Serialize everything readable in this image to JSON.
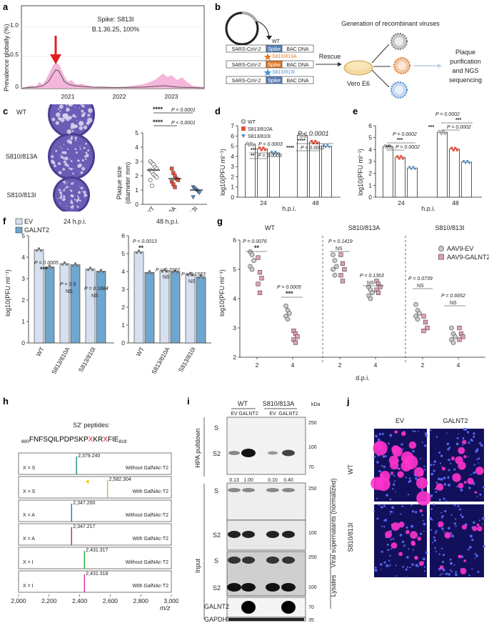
{
  "panels": {
    "a": "a",
    "b": "b",
    "c": "c",
    "d": "d",
    "e": "e",
    "f": "f",
    "g": "g",
    "h": "h",
    "i": "i",
    "j": "j"
  },
  "panel_a": {
    "ylabel": "Prevalence globally (%)",
    "yticks": [
      "0",
      "0.5",
      "1.0"
    ],
    "xticks": [
      "2021",
      "2022",
      "2023"
    ],
    "annot1": "Spike: S813I",
    "annot2": "B.1.36.25, 100%",
    "colors": {
      "band": "#f2a9d3",
      "line": "#555555",
      "arrow": "#e02020"
    }
  },
  "panel_b": {
    "rows": [
      {
        "c1": "SARS-CoV-2",
        "c2": "Spike",
        "c3": "BAC DNA",
        "tag": "WT",
        "tagcolor": "#333333",
        "fill": "#5b82b8"
      },
      {
        "c1": "SARS-CoV-2",
        "c2": "Spike",
        "c3": "BAC DNA",
        "tag": "S810/813A",
        "tagcolor": "#e07a2a",
        "fill": "#e07a2a"
      },
      {
        "c1": "SARS-CoV-2",
        "c2": "Spike",
        "c3": "BAC DNA",
        "tag": "S810/813I",
        "tagcolor": "#4a90d0",
        "fill": "#5b82b8"
      }
    ],
    "title": "Generation of recombinant viruses",
    "rescue": "Rescue",
    "cell": "Vero E6",
    "out1": "Plaque",
    "out2": "purification",
    "out3": "and NGS",
    "out4": "sequencing"
  },
  "panel_c": {
    "labels": [
      "WT",
      "S810/813A",
      "S810/813I"
    ],
    "ylabel1": "Plaque size",
    "ylabel2": "(diameter mm)",
    "yticks": [
      "0",
      "1",
      "2",
      "3",
      "4",
      "5"
    ],
    "p1": "****",
    "p1v": "P < 0.0001",
    "p2": "****",
    "p2v": "P < 0.0001",
    "chart_data": {
      "type": "scatter",
      "categories": [
        "WT",
        "S810/813A",
        "S810/813I"
      ],
      "means": [
        2.4,
        1.8,
        1.0
      ],
      "points": [
        [
          3.0,
          2.9,
          2.8,
          2.6,
          2.5,
          2.4,
          2.3,
          2.1,
          2.0,
          1.9,
          1.7,
          1.3
        ],
        [
          2.5,
          2.2,
          2.0,
          1.8,
          1.7,
          1.6,
          1.4,
          1.2
        ],
        [
          1.2,
          1.1,
          1.0,
          0.9,
          0.8,
          0.5
        ]
      ],
      "ylim": [
        0,
        5
      ]
    }
  },
  "panel_d": {
    "ylabel": "log10(PFU ml⁻¹)",
    "xlabel": "h.p.i.",
    "yticks": [
      "0",
      "1",
      "2",
      "3",
      "4",
      "5",
      "6",
      "7"
    ],
    "xticks": [
      "24",
      "48"
    ],
    "legend": [
      "WT",
      "S813/810A",
      "S813/810I"
    ],
    "stats": [
      "P = 0.0003",
      "***",
      "**",
      "P = 0.0003",
      "P < 0.0001",
      "****",
      "****",
      "P < 0.0001"
    ],
    "chart_data": {
      "type": "bar",
      "categories": [
        "24",
        "48"
      ],
      "series": [
        {
          "name": "WT",
          "values": [
            5.2,
            6.05
          ]
        },
        {
          "name": "S813/810A",
          "values": [
            4.75,
            5.4
          ]
        },
        {
          "name": "S813/810I",
          "values": [
            4.35,
            5.0
          ]
        }
      ],
      "ylim": [
        0,
        7
      ]
    }
  },
  "panel_e": {
    "ylabel": "log10(PFU ml⁻¹)",
    "xlabel": "h.p.i.",
    "yticks": [
      "0",
      "1",
      "2",
      "3",
      "4",
      "5",
      "6"
    ],
    "xticks": [
      "24",
      "48"
    ],
    "stats": [
      "P = 0.0002",
      "***",
      "***",
      "P = 0.0002",
      "P = 0.0002",
      "***",
      "***",
      "P = 0.0002"
    ],
    "chart_data": {
      "type": "bar",
      "categories": [
        "24",
        "48"
      ],
      "series": [
        {
          "values": [
            4.25,
            5.45
          ]
        },
        {
          "values": [
            3.35,
            4.05
          ]
        },
        {
          "values": [
            2.45,
            2.95
          ]
        }
      ],
      "ylim": [
        0,
        6
      ]
    }
  },
  "panel_f": {
    "ylabel": "log10(PFU ml⁻¹)",
    "legend": [
      "EV",
      "GALNT2"
    ],
    "titles": [
      "24 h.p.i.",
      "48 h.p.i."
    ],
    "yticks": [
      "0",
      "1",
      "2",
      "3",
      "4",
      "5"
    ],
    "yticks2": [
      "0",
      "1",
      "2",
      "3",
      "4",
      "5",
      "6"
    ],
    "xticks": [
      "WT",
      "S813/810A",
      "S813/810I"
    ],
    "stats24": [
      "P = 0.0005",
      "***",
      "P > 0.9",
      "NS",
      "P = 0.1884",
      "NS"
    ],
    "stats48": [
      "P < 0.0013",
      "**",
      "P = 0.2022",
      "NS",
      "P = 0.1583",
      "NS"
    ],
    "chart_data": [
      {
        "type": "bar",
        "title": "24 h.p.i.",
        "categories": [
          "WT",
          "S813/810A",
          "S813/810I"
        ],
        "series": [
          {
            "name": "EV",
            "values": [
              4.35,
              3.7,
              3.45
            ]
          },
          {
            "name": "GALNT2",
            "values": [
              3.55,
              3.65,
              3.35
            ]
          }
        ],
        "ylim": [
          0,
          5
        ]
      },
      {
        "type": "bar",
        "title": "48 h.p.i.",
        "categories": [
          "WT",
          "S813/810A",
          "S813/810I"
        ],
        "series": [
          {
            "name": "EV",
            "values": [
              5.1,
              4.05,
              3.85
            ]
          },
          {
            "name": "GALNT2",
            "values": [
              3.95,
              4.0,
              3.7
            ]
          }
        ],
        "ylim": [
          0,
          6
        ]
      }
    ]
  },
  "panel_g": {
    "ylabel": "log10(PFU ml⁻¹)",
    "xlabel": "d.p.i.",
    "titles": [
      "WT",
      "S810/813A",
      "S810/813I"
    ],
    "legend": [
      "AAV9-EV",
      "AAV9-GALNT2"
    ],
    "yticks": [
      "2",
      "3",
      "4",
      "5",
      "6"
    ],
    "xticks": [
      "2",
      "4"
    ],
    "stats": [
      [
        "P = 0.0076",
        "**",
        "P = 0.0005",
        "***"
      ],
      [
        "P = 0.1419",
        "NS",
        "P = 0.1363",
        "NS"
      ],
      [
        "P = 0.0739",
        "NS",
        "P = 0.6652",
        "NS"
      ]
    ],
    "chart_data": {
      "type": "scatter",
      "groups": [
        "WT",
        "S810/813A",
        "S810/813I"
      ],
      "x": [
        "2",
        "4"
      ],
      "ev": [
        [
          5.6,
          5.5,
          5.3,
          5.1,
          5.0
        ],
        [
          3.75,
          3.6,
          3.5,
          3.4,
          3.3
        ],
        [
          5.5,
          5.3,
          5.1,
          5.0,
          4.8
        ],
        [
          4.4,
          4.3,
          4.2,
          4.1,
          4.0
        ],
        [
          3.8,
          3.6,
          3.5,
          3.4,
          3.3
        ],
        [
          3.0,
          2.8,
          2.7,
          2.6,
          2.5
        ]
      ],
      "galnt2": [
        [
          5.4,
          4.9,
          4.7,
          4.5,
          4.2
        ],
        [
          2.9,
          2.8,
          2.7,
          2.6,
          2.5
        ],
        [
          5.5,
          5.2,
          5.0,
          4.8,
          4.6
        ],
        [
          4.6,
          4.5,
          4.4,
          4.3,
          4.2
        ],
        [
          3.4,
          3.2,
          3.0,
          2.9
        ],
        [
          3.0,
          2.8,
          2.7,
          2.6
        ]
      ],
      "ylim": [
        2,
        6
      ]
    }
  },
  "panel_h": {
    "title": "S2′ peptides:",
    "seq_pre": "800",
    "seq_a": "FNFSQILPDPSKP",
    "seq_x1": "X",
    "seq_b": "KR",
    "seq_x2": "X",
    "seq_c": "FIE",
    "seq_post": "819",
    "xlabel": "m/z",
    "xticks": [
      "2,000",
      "2,200",
      "2,400",
      "2,600",
      "2,800",
      "3,000"
    ],
    "rows": [
      {
        "x": "X = S",
        "peak": "2,379.240",
        "mz": 2379.24,
        "cond": "Without GalNAc-T2",
        "color": "#1a8a8a"
      },
      {
        "x": "X = S",
        "peak": "2,582.304",
        "mz": 2582.304,
        "cond": "With GalNAc-T2",
        "color": "#b8c41a"
      },
      {
        "x": "X = A",
        "peak": "2,347.200",
        "mz": 2347.2,
        "cond": "Without GalNAc-T2",
        "color": "#2a6bd0"
      },
      {
        "x": "X = A",
        "peak": "2,347.217",
        "mz": 2347.217,
        "cond": "With GalNAc-T2",
        "color": "#d02a2a"
      },
      {
        "x": "X = I",
        "peak": "2,431.317",
        "mz": 2431.317,
        "cond": "Without GalNAc-T2",
        "color": "#22aa44"
      },
      {
        "x": "X = I",
        "peak": "2,431.318",
        "mz": 2431.318,
        "cond": "With GalNAc-T2",
        "color": "#e02aa0"
      }
    ]
  },
  "panel_i": {
    "groups": [
      "WT",
      "S810/813A"
    ],
    "lanes": [
      "EV",
      "GALNT2",
      "EV",
      "GALNT2"
    ],
    "kda": "kDa",
    "hpa": "HPA pulldown",
    "input": "Input",
    "sup": "Viral supernatants (normalized)",
    "lys": "Lysates",
    "quant": [
      "0.13",
      "1.00",
      "0.10",
      "0.40"
    ],
    "labels": {
      "s": "S",
      "s2": "S2",
      "galnt2": "GALNT2",
      "gapdh": "GAPDH"
    },
    "mw1": [
      "250",
      "100",
      "70"
    ],
    "mw2": [
      "250",
      "100"
    ],
    "mw3": [
      "250",
      "100"
    ],
    "mw4": [
      "70"
    ],
    "mw5": [
      "35"
    ]
  },
  "panel_j": {
    "cols": [
      "EV",
      "GALNT2"
    ],
    "rows": [
      "WT",
      "S810/813I"
    ]
  }
}
